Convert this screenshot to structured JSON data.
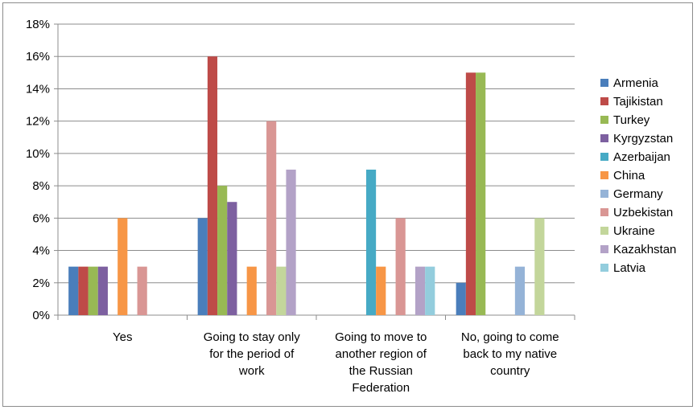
{
  "chart_data": {
    "type": "bar",
    "title": "",
    "xlabel": "",
    "ylabel": "",
    "ylim": [
      0,
      18
    ],
    "y_tick_step": 2,
    "y_tick_suffix": "%",
    "grid": true,
    "legend": "right",
    "categories": [
      [
        "Yes"
      ],
      [
        "Going to stay only",
        "for the period of",
        "work"
      ],
      [
        "Going to move to",
        "another region of",
        "the Russian",
        "Federation"
      ],
      [
        "No, going to come",
        "back to my native",
        "country"
      ]
    ],
    "series": [
      {
        "name": "Armenia",
        "color": "#4a7ebb",
        "values": [
          3,
          6,
          0,
          2
        ]
      },
      {
        "name": "Tajikistan",
        "color": "#be4b48",
        "values": [
          3,
          16,
          0,
          15
        ]
      },
      {
        "name": "Turkey",
        "color": "#98b954",
        "values": [
          3,
          8,
          0,
          15
        ]
      },
      {
        "name": "Kyrgyzstan",
        "color": "#7d60a0",
        "values": [
          3,
          7,
          0,
          0
        ]
      },
      {
        "name": "Azerbaijan",
        "color": "#46aac5",
        "values": [
          0,
          0,
          9,
          0
        ]
      },
      {
        "name": "China",
        "color": "#f79646",
        "values": [
          6,
          3,
          3,
          0
        ]
      },
      {
        "name": "Germany",
        "color": "#95b3d7",
        "values": [
          0,
          0,
          0,
          3
        ]
      },
      {
        "name": "Uzbekistan",
        "color": "#d99694",
        "values": [
          3,
          12,
          6,
          0
        ]
      },
      {
        "name": "Ukraine",
        "color": "#c3d69b",
        "values": [
          0,
          3,
          0,
          6
        ]
      },
      {
        "name": "Kazakhstan",
        "color": "#b3a2c7",
        "values": [
          0,
          9,
          3,
          0
        ]
      },
      {
        "name": "Latvia",
        "color": "#93cddd",
        "values": [
          0,
          0,
          3,
          0
        ]
      }
    ]
  }
}
